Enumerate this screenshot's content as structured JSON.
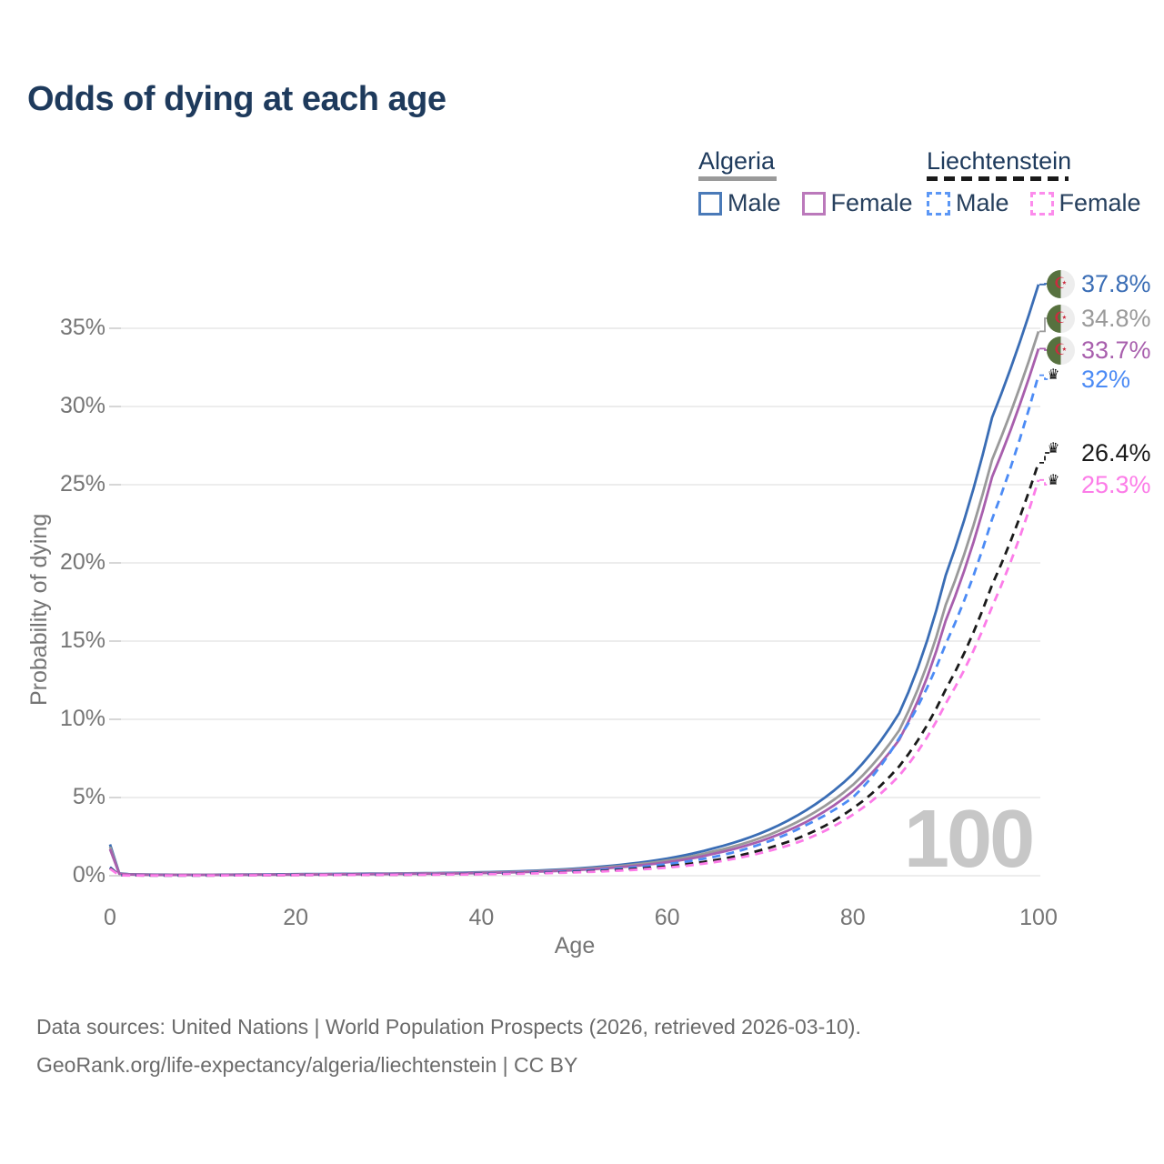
{
  "header": {
    "title": "Odds of dying at each age"
  },
  "legend": {
    "groups": [
      {
        "name": "Algeria",
        "line_style": "solid",
        "underline_color": "#9a9a9a",
        "items": [
          {
            "label": "Male",
            "color": "#4a7ab8",
            "dashed": false
          },
          {
            "label": "Female",
            "color": "#bb79bb",
            "dashed": false
          }
        ]
      },
      {
        "name": "Liechtenstein",
        "line_style": "dashed",
        "underline_color": "#1a1a1a",
        "items": [
          {
            "label": "Male",
            "color": "#5c97f5",
            "dashed": true
          },
          {
            "label": "Female",
            "color": "#fc8cec",
            "dashed": true
          }
        ]
      }
    ]
  },
  "chart_data": {
    "type": "line",
    "title": "Odds of dying at each age",
    "xlabel": "Age",
    "ylabel": "Probability of dying",
    "unit": "%",
    "xlim": [
      0,
      100
    ],
    "ylim": [
      0,
      38
    ],
    "grid": "horizontal",
    "hovered_age_label": "100",
    "xtick_values": [
      0,
      20,
      40,
      60,
      80,
      100
    ],
    "xtick_labels": [
      "0",
      "20",
      "40",
      "60",
      "80",
      "100"
    ],
    "ytick_values": [
      0,
      5,
      10,
      15,
      20,
      25,
      30,
      35
    ],
    "ytick_labels": [
      "0%",
      "5%",
      "10%",
      "15%",
      "20%",
      "25%",
      "30%",
      "35%"
    ],
    "ages": [
      0,
      1,
      2,
      5,
      10,
      15,
      20,
      25,
      30,
      35,
      40,
      45,
      50,
      55,
      60,
      65,
      70,
      75,
      80,
      85,
      90,
      95,
      100
    ],
    "series": [
      {
        "name": "Algeria Male",
        "country": "Algeria",
        "sex": "Male",
        "color": "#3a6db5",
        "dashed": false,
        "flag": "algeria",
        "end_value": 37.8,
        "end_label": "37.8%",
        "values": [
          2.0,
          0.15,
          0.1,
          0.07,
          0.06,
          0.08,
          0.1,
          0.12,
          0.14,
          0.17,
          0.22,
          0.3,
          0.45,
          0.7,
          1.1,
          1.75,
          2.7,
          4.2,
          6.5,
          10.4,
          19.2,
          29.3,
          37.8
        ]
      },
      {
        "name": "Algeria (both sexes)",
        "country": "Algeria",
        "sex": "Both",
        "color": "#9a9a9a",
        "dashed": false,
        "flag": "algeria",
        "end_value": 34.8,
        "end_label": "34.8%",
        "values": [
          1.85,
          0.13,
          0.09,
          0.06,
          0.055,
          0.07,
          0.085,
          0.1,
          0.12,
          0.15,
          0.19,
          0.27,
          0.4,
          0.62,
          0.97,
          1.55,
          2.4,
          3.75,
          5.8,
          9.3,
          17.3,
          26.6,
          34.8
        ]
      },
      {
        "name": "Algeria Female",
        "country": "Algeria",
        "sex": "Female",
        "color": "#a85fad",
        "dashed": false,
        "flag": "algeria",
        "end_value": 33.7,
        "end_label": "33.7%",
        "values": [
          1.7,
          0.12,
          0.08,
          0.05,
          0.05,
          0.06,
          0.07,
          0.09,
          0.11,
          0.13,
          0.17,
          0.24,
          0.35,
          0.55,
          0.86,
          1.4,
          2.2,
          3.45,
          5.4,
          8.7,
          16.3,
          25.5,
          33.7
        ]
      },
      {
        "name": "Liechtenstein Male",
        "country": "Liechtenstein",
        "sex": "Male",
        "color": "#4c8bf5",
        "dashed": true,
        "flag": "liechtenstein",
        "end_value": 32,
        "end_label": "32%",
        "values": [
          0.55,
          0.04,
          0.03,
          0.02,
          0.02,
          0.04,
          0.06,
          0.07,
          0.08,
          0.1,
          0.13,
          0.19,
          0.29,
          0.46,
          0.74,
          1.2,
          2.0,
          3.25,
          5.0,
          8.8,
          14.8,
          22.8,
          32.0
        ]
      },
      {
        "name": "Liechtenstein (both sexes)",
        "country": "Liechtenstein",
        "sex": "Both",
        "color": "#1a1a1a",
        "dashed": true,
        "flag": "liechtenstein",
        "end_value": 26.4,
        "end_label": "26.4%",
        "values": [
          0.5,
          0.035,
          0.025,
          0.018,
          0.018,
          0.032,
          0.045,
          0.055,
          0.065,
          0.08,
          0.11,
          0.16,
          0.24,
          0.38,
          0.6,
          0.98,
          1.62,
          2.62,
          4.3,
          7.0,
          11.9,
          18.6,
          26.4
        ]
      },
      {
        "name": "Liechtenstein Female",
        "country": "Liechtenstein",
        "sex": "Female",
        "color": "#fc7ce8",
        "dashed": true,
        "flag": "liechtenstein",
        "end_value": 25.3,
        "end_label": "25.3%",
        "values": [
          0.45,
          0.03,
          0.02,
          0.015,
          0.015,
          0.028,
          0.04,
          0.05,
          0.06,
          0.07,
          0.095,
          0.14,
          0.21,
          0.33,
          0.52,
          0.86,
          1.44,
          2.34,
          3.9,
          6.4,
          11.0,
          17.2,
          25.3
        ]
      }
    ],
    "legend_position": "top-right"
  },
  "footer": {
    "line1": "Data sources: United Nations | World Population Prospects (2026, retrieved 2026-03-10).",
    "line2": "GeoRank.org/life-expectancy/algeria/liechtenstein | CC BY"
  }
}
